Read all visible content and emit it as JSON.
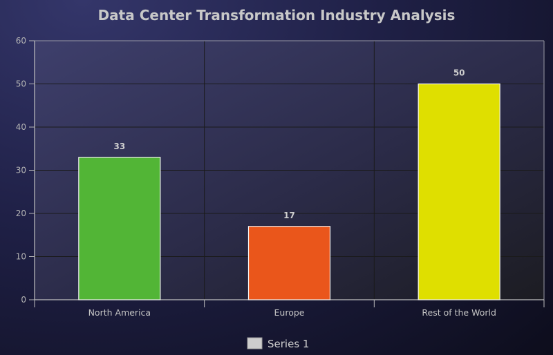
{
  "chart_data": {
    "type": "bar",
    "title": "Data Center Transformation Industry Analysis",
    "categories": [
      "North America",
      "Europe",
      "Rest of the World"
    ],
    "series": [
      {
        "name": "Series 1",
        "values": [
          33,
          17,
          50
        ]
      }
    ],
    "bar_colors": [
      "#52b536",
      "#ea561b",
      "#dfdf00"
    ],
    "legend_swatch_color": "#cdcdcd",
    "ylim": [
      0,
      60
    ],
    "yticks": [
      0,
      10,
      20,
      30,
      40,
      50,
      60
    ],
    "grid": true,
    "legend_position": "bottom-center",
    "xlabel": "",
    "ylabel": ""
  }
}
